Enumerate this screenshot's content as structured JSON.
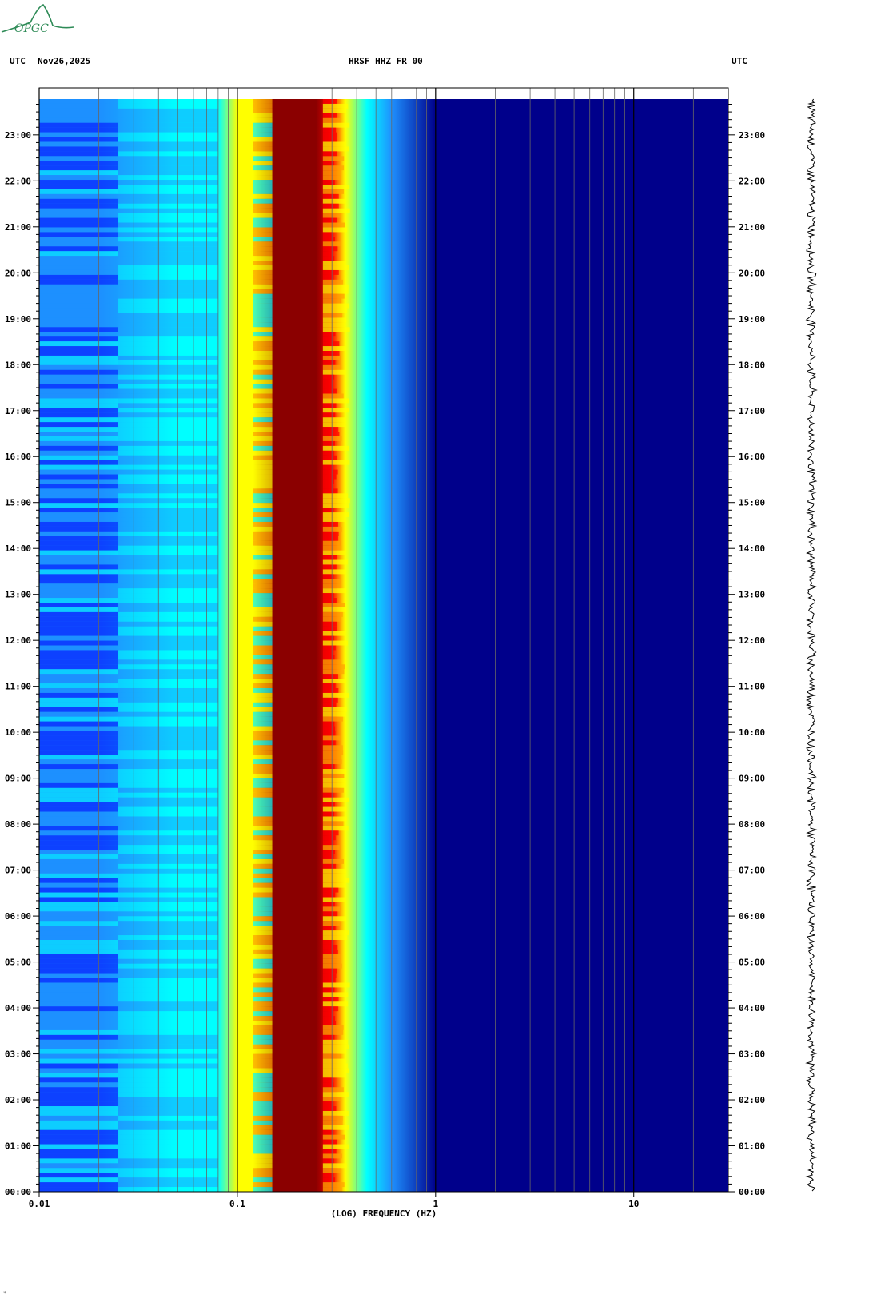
{
  "header": {
    "left_tz": "UTC",
    "date": "Nov26,2025",
    "station": "HRSF HHZ FR 00",
    "right_tz": "UTC"
  },
  "logo": {
    "text": "OPGC",
    "color": "#2e8b57"
  },
  "footnote": "*",
  "chart_data": {
    "type": "heatmap",
    "title": "HRSF HHZ FR 00",
    "xlabel": "(LOG) FREQUENCY (HZ)",
    "x_scale": "log",
    "xlim": [
      0.01,
      30
    ],
    "x_tick_labels": [
      {
        "value": 0.01,
        "label": "0.01"
      },
      {
        "value": 0.1,
        "label": "0.1"
      },
      {
        "value": 1,
        "label": "1"
      },
      {
        "value": 10,
        "label": "10"
      }
    ],
    "ylim_hours": [
      0,
      23.78
    ],
    "y_tick_labels": [
      "00:00",
      "01:00",
      "02:00",
      "03:00",
      "04:00",
      "05:00",
      "06:00",
      "07:00",
      "08:00",
      "09:00",
      "10:00",
      "11:00",
      "12:00",
      "13:00",
      "14:00",
      "15:00",
      "16:00",
      "17:00",
      "18:00",
      "19:00",
      "20:00",
      "21:00",
      "22:00",
      "23:00"
    ],
    "colormap": [
      "#00008b",
      "#0000ff",
      "#1e90ff",
      "#00ffff",
      "#ffff00",
      "#ffa500",
      "#ff0000",
      "#8b0000"
    ],
    "spectral_profile": [
      {
        "freq": 0.01,
        "level": 0.3
      },
      {
        "freq": 0.02,
        "level": 0.32
      },
      {
        "freq": 0.05,
        "level": 0.36
      },
      {
        "freq": 0.08,
        "level": 0.42
      },
      {
        "freq": 0.1,
        "level": 0.5
      },
      {
        "freq": 0.12,
        "level": 0.62
      },
      {
        "freq": 0.15,
        "level": 1.0
      },
      {
        "freq": 0.25,
        "level": 1.0
      },
      {
        "freq": 0.3,
        "level": 0.8
      },
      {
        "freq": 0.35,
        "level": 0.58
      },
      {
        "freq": 0.45,
        "level": 0.4
      },
      {
        "freq": 0.6,
        "level": 0.22
      },
      {
        "freq": 1,
        "level": 0.06
      },
      {
        "freq": 2,
        "level": 0.02
      },
      {
        "freq": 30,
        "level": 0.0
      }
    ],
    "grid": true,
    "trace": "seismogram"
  }
}
